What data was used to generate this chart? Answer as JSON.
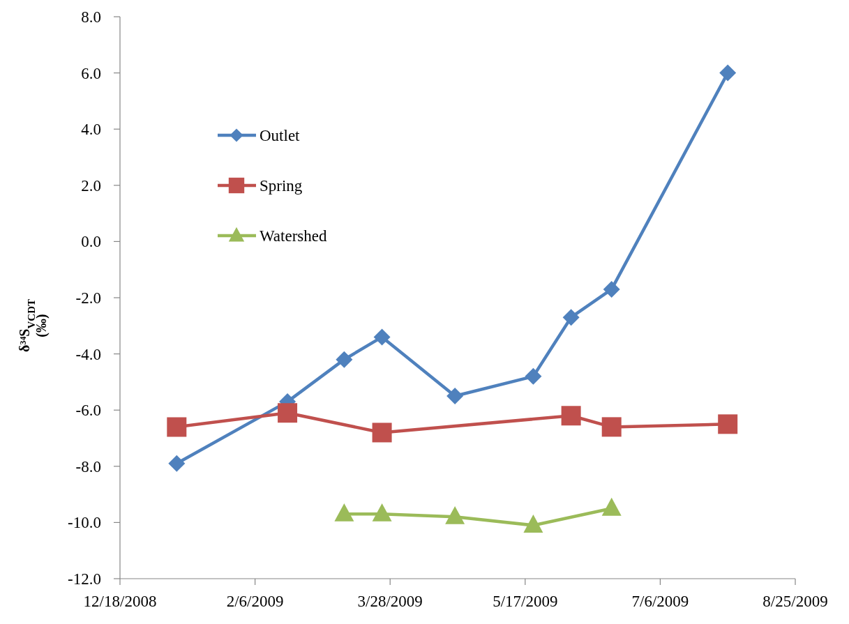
{
  "chart_data": {
    "type": "line",
    "ylabel": "δ³⁴S$_{VCDT}$\n(‰)",
    "x": [
      "2009-01-08",
      "2009-02-18",
      "2009-03-11",
      "2009-03-25",
      "2009-04-21",
      "2009-05-20",
      "2009-06-03",
      "2009-06-18",
      "2009-07-31"
    ],
    "series": [
      {
        "name": "Outlet",
        "color": "#4f81bd",
        "marker": "diamond",
        "values": [
          -7.9,
          -5.7,
          -4.2,
          -3.4,
          -5.5,
          -4.8,
          -2.7,
          -1.7,
          6.0
        ]
      },
      {
        "name": "Spring",
        "color": "#c0504d",
        "marker": "square",
        "x": [
          "2009-01-08",
          "2009-02-18",
          "2009-03-25",
          "2009-06-03",
          "2009-06-18",
          "2009-07-31"
        ],
        "values": [
          -6.6,
          -6.1,
          -6.8,
          -6.2,
          -6.6,
          -6.5
        ]
      },
      {
        "name": "Watershed",
        "color": "#9bbb59",
        "marker": "triangle",
        "x": [
          "2009-03-11",
          "2009-03-25",
          "2009-04-21",
          "2009-05-20",
          "2009-06-18"
        ],
        "values": [
          -9.7,
          -9.7,
          -9.8,
          -10.1,
          -9.5
        ]
      }
    ],
    "xlim": [
      "2008-12-18",
      "2009-08-25"
    ],
    "xticks": [
      {
        "value": "2008-12-18",
        "label": "12/18/2008"
      },
      {
        "value": "2009-02-06",
        "label": "2/6/2009"
      },
      {
        "value": "2009-03-28",
        "label": "3/28/2009"
      },
      {
        "value": "2009-05-17",
        "label": "5/17/2009"
      },
      {
        "value": "2009-07-06",
        "label": "7/6/2009"
      },
      {
        "value": "2009-08-25",
        "label": "8/25/2009"
      }
    ],
    "ylim": [
      -12,
      8
    ],
    "yticks": [
      {
        "value": -12,
        "label": "-12.0"
      },
      {
        "value": -10,
        "label": "-10.0"
      },
      {
        "value": -8,
        "label": "-8.0"
      },
      {
        "value": -6,
        "label": "-6.0"
      },
      {
        "value": -4,
        "label": "-4.0"
      },
      {
        "value": -2,
        "label": "-2.0"
      },
      {
        "value": 0,
        "label": "0.0"
      },
      {
        "value": 2,
        "label": "2.0"
      },
      {
        "value": 4,
        "label": "4.0"
      },
      {
        "value": 6,
        "label": "6.0"
      },
      {
        "value": 8,
        "label": "8.0"
      }
    ],
    "grid": false,
    "legend": "top left",
    "line_style": "solid"
  }
}
